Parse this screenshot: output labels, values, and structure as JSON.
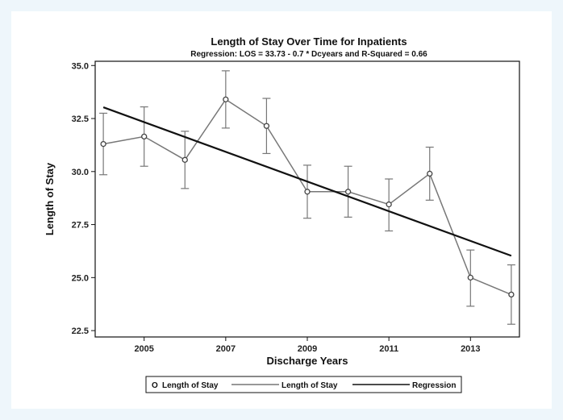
{
  "chart_data": {
    "type": "line",
    "title": "Length of Stay Over Time for Inpatients",
    "subtitle": "Regression: LOS = 33.73 - 0.7 * Dcyears and R-Squared = 0.66",
    "xlabel": "Discharge Years",
    "ylabel": "Length of Stay",
    "xlim": [
      2003.8,
      2014.2
    ],
    "ylim": [
      22.2,
      35.2
    ],
    "x_ticks": [
      2005,
      2007,
      2009,
      2011,
      2013
    ],
    "y_ticks": [
      22.5,
      25.0,
      27.5,
      30.0,
      32.5,
      35.0
    ],
    "x": [
      2004,
      2005,
      2006,
      2007,
      2008,
      2009,
      2010,
      2011,
      2012,
      2013,
      2014
    ],
    "series": [
      {
        "name": "Length of Stay",
        "kind": "points-with-error-bars",
        "values": [
          31.3,
          31.65,
          30.55,
          33.4,
          32.15,
          29.05,
          29.05,
          28.45,
          29.9,
          25.0,
          24.2
        ],
        "lower": [
          29.85,
          30.25,
          29.2,
          32.05,
          30.85,
          27.8,
          27.85,
          27.2,
          28.65,
          23.65,
          22.8
        ],
        "upper": [
          32.75,
          33.05,
          31.9,
          34.75,
          33.45,
          30.3,
          30.25,
          29.65,
          31.15,
          26.3,
          25.6
        ],
        "color": "#777777"
      },
      {
        "name": "Regression",
        "kind": "line",
        "values": [
          33.03,
          32.33,
          31.63,
          30.93,
          30.23,
          29.53,
          28.83,
          28.13,
          27.43,
          26.73,
          26.03
        ],
        "color": "#111111"
      }
    ],
    "grid": false,
    "legend": {
      "position": "bottom",
      "entries": [
        {
          "marker": "O",
          "label": "Length of Stay"
        },
        {
          "marker": "line",
          "label": "Length of Stay"
        },
        {
          "marker": "line",
          "label": "Regression"
        }
      ]
    }
  }
}
